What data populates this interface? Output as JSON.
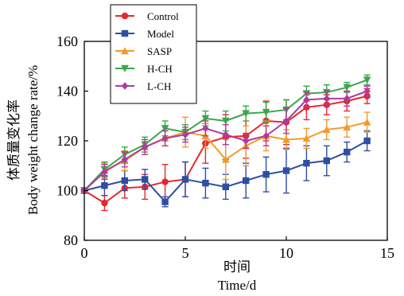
{
  "chart_data": {
    "type": "line",
    "xlabel_cn": "时间",
    "xlabel": "Time/d",
    "ylabel_cn": "体质量变化率",
    "ylabel": "Body weight change rate/%",
    "xlim": [
      0,
      15
    ],
    "ylim": [
      80,
      160
    ],
    "xticks": [
      0,
      5,
      10,
      15
    ],
    "yticks": [
      80,
      100,
      120,
      140,
      160
    ],
    "legend_position": "top-left",
    "x": [
      0,
      1,
      2,
      3,
      4,
      5,
      6,
      7,
      8,
      9,
      10,
      11,
      12,
      13,
      14
    ],
    "series": [
      {
        "name": "Control",
        "color": "#e8262b",
        "marker": "circle",
        "values": [
          100,
          95,
          101,
          101.5,
          103.5,
          104.5,
          119,
          121.5,
          122,
          128,
          127.5,
          133.5,
          134.5,
          136,
          138
        ],
        "errors": [
          1,
          3,
          4,
          5,
          7,
          7,
          8,
          9,
          9,
          8,
          9,
          5,
          4,
          4,
          3
        ]
      },
      {
        "name": "Model",
        "color": "#2f4ea3",
        "marker": "square",
        "values": [
          100,
          102,
          104,
          104.5,
          95.5,
          104.5,
          103,
          101.5,
          104,
          106.5,
          108,
          111,
          112,
          115.5,
          120
        ],
        "errors": [
          1,
          4,
          4,
          4,
          2,
          7,
          6,
          5,
          7,
          7,
          9,
          7,
          6,
          4,
          4
        ]
      },
      {
        "name": "SASP",
        "color": "#f39a2b",
        "marker": "triangle",
        "values": [
          100,
          108,
          112,
          117.5,
          121,
          123.5,
          122,
          112.5,
          118,
          122,
          120.5,
          121,
          124.5,
          125.5,
          127.5
        ],
        "errors": [
          1,
          3,
          4,
          3,
          3,
          6,
          5,
          8,
          8,
          6,
          4,
          4,
          4,
          4,
          4
        ]
      },
      {
        "name": "H-CH",
        "color": "#3aa64a",
        "marker": "triangle-down",
        "values": [
          100,
          108.5,
          114.5,
          118.5,
          125,
          123.5,
          129,
          128,
          131,
          131.5,
          132.5,
          139,
          139.5,
          141.5,
          144.5
        ],
        "errors": [
          1,
          3,
          3,
          3,
          3,
          3,
          3,
          4,
          3,
          4,
          4,
          3,
          3,
          2,
          2
        ]
      },
      {
        "name": "L-CH",
        "color": "#b03a9c",
        "marker": "diamond",
        "values": [
          100,
          107.5,
          112.5,
          117.5,
          121,
          122.5,
          125,
          122.5,
          120,
          122,
          128,
          136.5,
          137,
          137,
          140
        ],
        "errors": [
          1,
          3,
          3,
          3,
          3,
          3,
          3,
          4,
          3,
          4,
          5,
          3,
          3,
          3,
          2
        ]
      }
    ]
  }
}
